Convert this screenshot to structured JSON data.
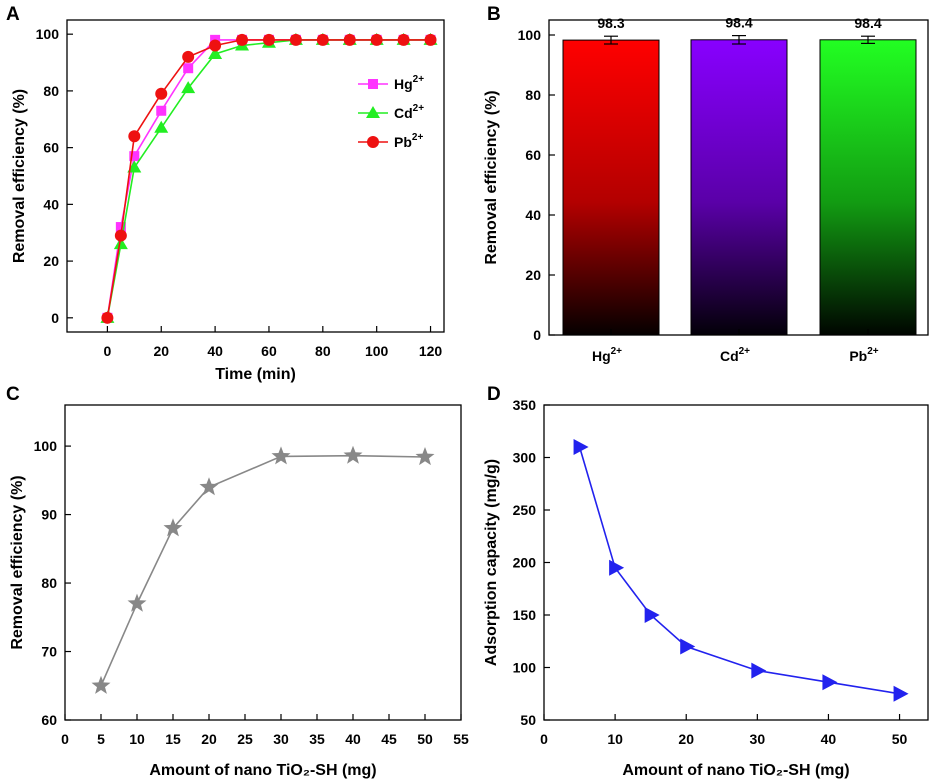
{
  "colors": {
    "hg": "#ff33ff",
    "cd": "#22ee22",
    "pb": "#ee1111",
    "bar_hg": "#ff0000",
    "bar_cd": "#8800ff",
    "bar_pb": "#22ff22",
    "gray": "#888888",
    "blue": "#2222ee"
  },
  "chart_data": [
    {
      "id": "A",
      "panel_label": "A",
      "type": "line",
      "xlabel": "Time (min)",
      "ylabel": "Removal efficiency (%)",
      "xlim": [
        -15,
        125
      ],
      "ylim": [
        -5,
        105
      ],
      "xticks": [
        0,
        20,
        40,
        60,
        80,
        100,
        120
      ],
      "yticks": [
        0,
        20,
        40,
        60,
        80,
        100
      ],
      "x": [
        0,
        5,
        10,
        20,
        30,
        40,
        50,
        60,
        70,
        80,
        90,
        100,
        110,
        120
      ],
      "series": [
        {
          "name": "Hg",
          "sup": "2+",
          "marker": "square",
          "color_key": "hg",
          "values": [
            0,
            32,
            57,
            73,
            88,
            98,
            98,
            98,
            98,
            98,
            98,
            98,
            98,
            98
          ]
        },
        {
          "name": "Cd",
          "sup": "2+",
          "marker": "triangle",
          "color_key": "cd",
          "values": [
            0,
            26,
            53,
            67,
            81,
            93,
            96,
            97,
            98,
            98,
            98,
            98,
            98,
            98
          ]
        },
        {
          "name": "Pb",
          "sup": "2+",
          "marker": "circle",
          "color_key": "pb",
          "values": [
            0,
            29,
            64,
            79,
            92,
            96,
            98,
            98,
            98,
            98,
            98,
            98,
            98,
            98
          ]
        }
      ],
      "legend": "right"
    },
    {
      "id": "B",
      "panel_label": "B",
      "type": "bar",
      "ylabel": "Removal efficiency (%)",
      "ylim": [
        0,
        105
      ],
      "yticks": [
        0,
        20,
        40,
        60,
        80,
        100
      ],
      "categories": [
        {
          "name": "Hg",
          "sup": "2+"
        },
        {
          "name": "Cd",
          "sup": "2+"
        },
        {
          "name": "Pb",
          "sup": "2+"
        }
      ],
      "values": [
        98.3,
        98.4,
        98.4
      ],
      "errors": [
        1.3,
        1.4,
        1.2
      ],
      "value_labels": [
        "98.3",
        "98.4",
        "98.4"
      ],
      "bar_color_keys": [
        "bar_hg",
        "bar_cd",
        "bar_pb"
      ]
    },
    {
      "id": "C",
      "panel_label": "C",
      "type": "line",
      "xlabel": "Amount of nano TiO₂-SH (mg)",
      "ylabel": "Removal efficiency (%)",
      "xlim": [
        0,
        55
      ],
      "ylim": [
        60,
        106
      ],
      "xticks": [
        0,
        5,
        10,
        15,
        20,
        25,
        30,
        35,
        40,
        45,
        50,
        55
      ],
      "yticks": [
        60,
        70,
        80,
        90,
        100
      ],
      "x": [
        5,
        10,
        15,
        20,
        30,
        40,
        50
      ],
      "series": [
        {
          "name": "",
          "marker": "star",
          "color_key": "gray",
          "values": [
            65,
            77,
            88,
            94,
            98.5,
            98.6,
            98.4
          ]
        }
      ]
    },
    {
      "id": "D",
      "panel_label": "D",
      "type": "line",
      "xlabel": "Amount of nano TiO₂-SH (mg)",
      "ylabel": "Adsorption capacity (mg/g)",
      "xlim": [
        0,
        54
      ],
      "ylim": [
        50,
        350
      ],
      "xticks": [
        0,
        10,
        20,
        30,
        40,
        50
      ],
      "yticks": [
        50,
        100,
        150,
        200,
        250,
        300,
        350
      ],
      "x": [
        5,
        10,
        15,
        20,
        30,
        40,
        50
      ],
      "series": [
        {
          "name": "",
          "marker": "triangle-right",
          "color_key": "blue",
          "values": [
            310,
            195,
            150,
            120,
            97,
            86,
            75
          ]
        }
      ]
    }
  ]
}
